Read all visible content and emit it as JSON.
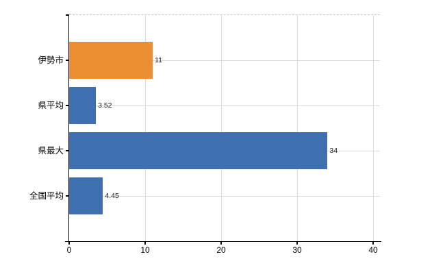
{
  "chart_data": {
    "type": "bar",
    "orientation": "horizontal",
    "title": "",
    "xlabel": "",
    "ylabel": "",
    "categories": [
      "伊勢市",
      "県平均",
      "県最大",
      "全国平均"
    ],
    "values": [
      11,
      3.52,
      34,
      4.45
    ],
    "value_labels": [
      "11",
      "3.52",
      "34",
      "4.45"
    ],
    "bar_colors": [
      "#ec8f33",
      "#3e6fae",
      "#3e6fae",
      "#3e6fae"
    ],
    "xlim": [
      0,
      40.9
    ],
    "x_ticks": [
      0,
      10,
      20,
      30,
      40
    ],
    "x_tick_labels": [
      "0",
      "10",
      "20",
      "30",
      "40"
    ],
    "grid": true,
    "legend": false
  },
  "colors": {
    "background": "#ffffff",
    "gridline": "#d9d9d9",
    "top_border": "#cccccc",
    "axis": "#000000",
    "text": "#000000",
    "value_text": "#1a1a1a"
  }
}
